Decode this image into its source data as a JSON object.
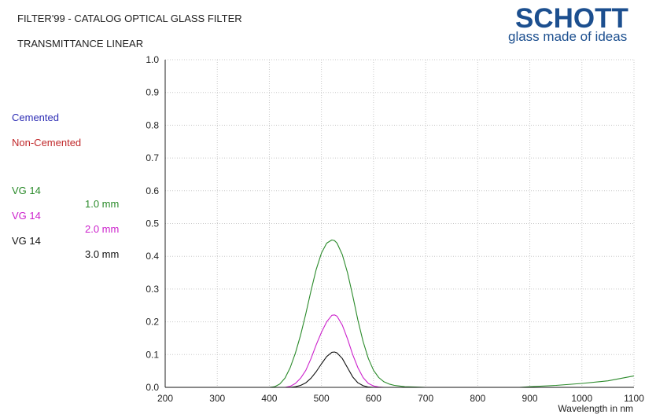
{
  "header": {
    "title": "FILTER'99 - CATALOG OPTICAL GLASS FILTER",
    "subtitle": "TRANSMITTANCE LINEAR"
  },
  "brand": {
    "name": "SCHOTT",
    "tagline": "glass made of ideas",
    "color": "#1c4f8f"
  },
  "legend": {
    "cemented": {
      "label": "Cemented",
      "color": "#2d2db4"
    },
    "non_cemented": {
      "label": "Non-Cemented",
      "color": "#c0282a"
    },
    "entries": [
      {
        "glass": "VG 14",
        "thickness": "1.0 mm",
        "color": "#2a8a2a"
      },
      {
        "glass": "VG 14",
        "thickness": "2.0 mm",
        "color": "#cc22cc"
      },
      {
        "glass": "VG 14",
        "thickness": "3.0 mm",
        "color": "#111111"
      }
    ]
  },
  "chart_data": {
    "type": "line",
    "xlabel": "Wavelength in nm",
    "ylabel": "",
    "xlim": [
      200,
      1100
    ],
    "ylim": [
      0,
      1
    ],
    "x_ticks": [
      "200",
      "300",
      "400",
      "500",
      "600",
      "700",
      "800",
      "900",
      "1000",
      "1100"
    ],
    "y_ticks": [
      "0.0",
      "0.1",
      "0.2",
      "0.3",
      "0.4",
      "0.5",
      "0.6",
      "0.7",
      "0.8",
      "0.9",
      "1.0"
    ],
    "grid": true,
    "series": [
      {
        "name": "VG 14 1.0 mm",
        "color": "#2a8a2a",
        "x": [
          200,
          400,
          410,
          420,
          430,
          440,
          450,
          460,
          470,
          480,
          490,
          500,
          510,
          520,
          525,
          530,
          540,
          550,
          560,
          570,
          580,
          590,
          600,
          610,
          620,
          630,
          640,
          650,
          660,
          680,
          700,
          750,
          800,
          850,
          880,
          900,
          950,
          1000,
          1050,
          1100
        ],
        "y": [
          0,
          0,
          0.002,
          0.01,
          0.028,
          0.06,
          0.105,
          0.16,
          0.225,
          0.295,
          0.36,
          0.41,
          0.44,
          0.45,
          0.448,
          0.44,
          0.405,
          0.35,
          0.28,
          0.205,
          0.14,
          0.088,
          0.052,
          0.03,
          0.017,
          0.01,
          0.006,
          0.004,
          0.002,
          0.001,
          0,
          0,
          0,
          0,
          0,
          0.002,
          0.006,
          0.012,
          0.02,
          0.035
        ]
      },
      {
        "name": "VG 14 2.0 mm",
        "color": "#cc22cc",
        "x": [
          200,
          430,
          440,
          450,
          460,
          470,
          480,
          490,
          500,
          510,
          520,
          525,
          530,
          540,
          550,
          560,
          570,
          580,
          590,
          600,
          610,
          620,
          1100
        ],
        "y": [
          0,
          0,
          0.003,
          0.012,
          0.028,
          0.052,
          0.088,
          0.13,
          0.168,
          0.2,
          0.22,
          0.221,
          0.217,
          0.19,
          0.148,
          0.1,
          0.06,
          0.03,
          0.012,
          0.004,
          0.001,
          0,
          0
        ]
      },
      {
        "name": "VG 14 3.0 mm",
        "color": "#111111",
        "x": [
          200,
          440,
          450,
          460,
          470,
          480,
          490,
          500,
          510,
          520,
          525,
          530,
          540,
          550,
          560,
          570,
          580,
          590,
          600,
          1100
        ],
        "y": [
          0,
          0,
          0.002,
          0.006,
          0.014,
          0.028,
          0.048,
          0.072,
          0.094,
          0.107,
          0.108,
          0.105,
          0.088,
          0.06,
          0.032,
          0.014,
          0.005,
          0.001,
          0,
          0
        ]
      }
    ]
  }
}
